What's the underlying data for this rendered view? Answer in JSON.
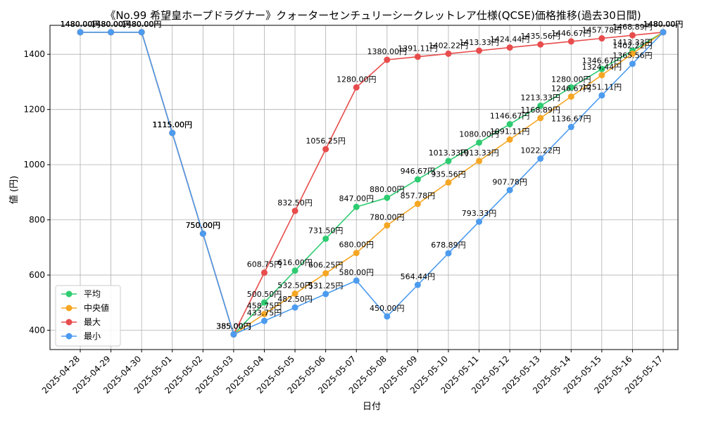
{
  "chart_data": {
    "type": "line",
    "title": "《No.99 希望皇ホープドラグナー》クォーターセンチュリーシークレットレア仕様(QCSE)価格推移(過去30日間)",
    "xlabel": "日付",
    "ylabel": "値 (円)",
    "ylim": [
      330,
      1505
    ],
    "yticks": [
      400,
      600,
      800,
      1000,
      1200,
      1400
    ],
    "grid": true,
    "legend_position": "bottom-left",
    "label_suffix": "円",
    "categories": [
      "2025-04-28",
      "2025-04-29",
      "2025-04-30",
      "2025-05-01",
      "2025-05-02",
      "2025-05-03",
      "2025-05-04",
      "2025-05-05",
      "2025-05-06",
      "2025-05-07",
      "2025-05-08",
      "2025-05-09",
      "2025-05-10",
      "2025-05-11",
      "2025-05-12",
      "2025-05-13",
      "2025-05-14",
      "2025-05-15",
      "2025-05-16",
      "2025-05-17"
    ],
    "series": [
      {
        "name": "平均",
        "color": "#2ecc71",
        "values": [
          1480.0,
          1480.0,
          1480.0,
          1115.0,
          750.0,
          385.0,
          500.5,
          616.0,
          731.5,
          847.0,
          880.0,
          946.67,
          1013.33,
          1080.0,
          1146.67,
          1213.33,
          1280.0,
          1346.67,
          1413.33,
          1480.0
        ]
      },
      {
        "name": "中央値",
        "color": "#f5a623",
        "values": [
          1480.0,
          1480.0,
          1480.0,
          1115.0,
          750.0,
          385.0,
          458.75,
          532.5,
          606.25,
          680.0,
          780.0,
          857.78,
          935.56,
          1013.33,
          1091.11,
          1168.89,
          1246.67,
          1324.44,
          1402.22,
          1480.0
        ]
      },
      {
        "name": "最大",
        "color": "#e84c4c",
        "values": [
          1480.0,
          1480.0,
          1480.0,
          1115.0,
          750.0,
          385.0,
          608.75,
          832.5,
          1056.25,
          1280.0,
          1380.0,
          1391.11,
          1402.22,
          1413.33,
          1424.44,
          1435.56,
          1446.67,
          1457.78,
          1468.89,
          1480.0
        ]
      },
      {
        "name": "最小",
        "color": "#4c9bef",
        "values": [
          1480.0,
          1480.0,
          1480.0,
          1115.0,
          750.0,
          385.0,
          433.75,
          482.5,
          531.25,
          580.0,
          450.0,
          564.44,
          678.89,
          793.33,
          907.78,
          1022.22,
          1136.67,
          1251.11,
          1365.56,
          1480.0
        ]
      }
    ]
  }
}
